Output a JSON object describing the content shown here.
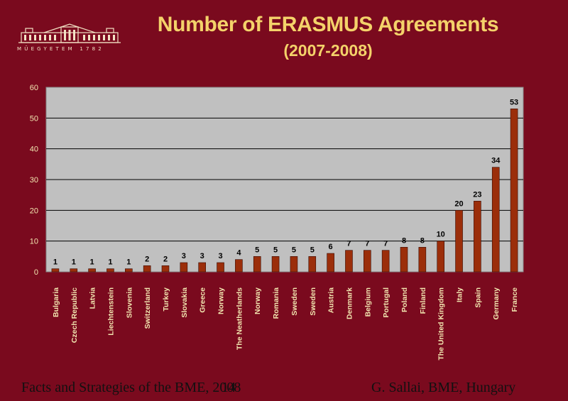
{
  "header": {
    "title_line1": "Number of ERASMUS Agreements",
    "title_line2": "(2007-2008)",
    "logo_caption": "MŰEGYETEM 1782"
  },
  "footer": {
    "left": "Facts and Strategies of the BME, 2008",
    "page": "14",
    "right": "G. Sallai, BME, Hungary"
  },
  "colors": {
    "background": "#7a0a1e",
    "plot_area": "#c0c0c0",
    "bar": "#9b2e0a",
    "title": "#f4d26a",
    "tick_labels": "#f2e6b0"
  },
  "chart_data": {
    "type": "bar",
    "title": "Number of ERASMUS Agreements",
    "subtitle": "(2007-2008)",
    "xlabel": "",
    "ylabel": "",
    "ylim": [
      0,
      60
    ],
    "yticks": [
      0,
      10,
      20,
      30,
      40,
      50,
      60
    ],
    "grid": true,
    "legend": "none",
    "categories": [
      "Bulgaria",
      "Czech Republic",
      "Latvia",
      "Liechtenstein",
      "Slovenia",
      "Switzerland",
      "Turkey",
      "Slovakia",
      "Greece",
      "Norway",
      "The Neatherlands",
      "Norway",
      "Romania",
      "Sweden",
      "Sweden",
      "Austria",
      "Denmark",
      "Belgium",
      "Portugal",
      "Poland",
      "Finland",
      "The United Kingdom",
      "Italy",
      "Spain",
      "Germany",
      "France"
    ],
    "values": [
      1,
      1,
      1,
      1,
      1,
      2,
      2,
      3,
      3,
      3,
      4,
      5,
      5,
      5,
      5,
      6,
      7,
      7,
      7,
      8,
      8,
      10,
      20,
      23,
      34,
      53
    ]
  }
}
